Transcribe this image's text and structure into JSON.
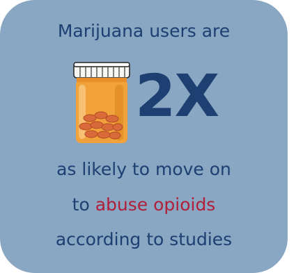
{
  "headline": "Marijuana users are",
  "icon": "pill-bottle-icon",
  "multiplier": "2X",
  "body": {
    "line1": "as likely to move on",
    "line2_prefix": "to ",
    "line2_emphasis": "abuse opioids",
    "line3": "according to studies"
  },
  "colors": {
    "card_background": "#89a6c2",
    "text": "#1d3f72",
    "emphasis": "#b0203a",
    "bottle_body": "#f2a23a",
    "bottle_cap": "#ffffff"
  }
}
